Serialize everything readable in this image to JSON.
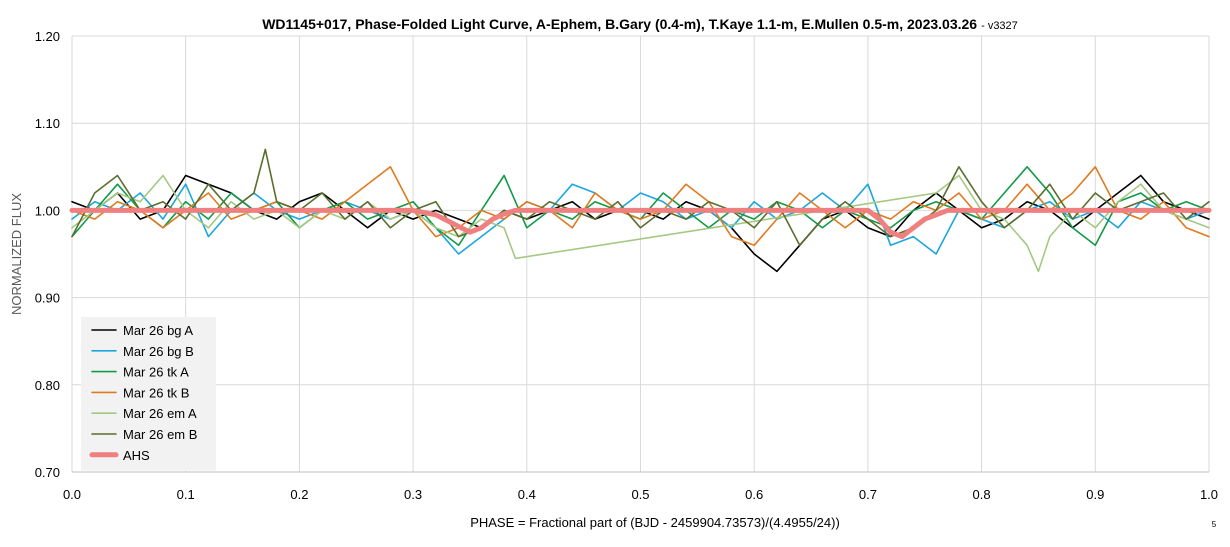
{
  "chart_data": {
    "type": "line",
    "title": "WD1145+017, Phase-Folded Light Curve, A-Ephem, B.Gary (0.4-m), T.Kaye 1.1-m, E.Mullen 0.5-m, 2023.03.26",
    "title_suffix": "- v3327",
    "xlabel": "PHASE = Fractional part of (BJD - 2459904.73573)/(4.4955/24))",
    "ylabel": "NORMALIZED FLUX",
    "xlim": [
      0.0,
      1.0
    ],
    "ylim": [
      0.7,
      1.2
    ],
    "x_ticks": [
      "0.0",
      "0.1",
      "0.2",
      "0.3",
      "0.4",
      "0.5",
      "0.6",
      "0.7",
      "0.8",
      "0.9",
      "1.0"
    ],
    "y_ticks": [
      "0.70",
      "0.80",
      "0.90",
      "1.00",
      "1.10",
      "1.20"
    ],
    "grid": true,
    "legend_position": "bottom-left",
    "page_number": "5",
    "series": [
      {
        "name": "Mar 26 bg A",
        "color": "#000000",
        "x": [
          0.0,
          0.02,
          0.04,
          0.06,
          0.08,
          0.1,
          0.12,
          0.14,
          0.16,
          0.18,
          0.2,
          0.22,
          0.24,
          0.26,
          0.28,
          0.3,
          0.32,
          0.34,
          0.36,
          0.38,
          0.4,
          0.42,
          0.44,
          0.46,
          0.48,
          0.5,
          0.52,
          0.54,
          0.56,
          0.58,
          0.6,
          0.62,
          0.64,
          0.66,
          0.68,
          0.7,
          0.72,
          0.74,
          0.76,
          0.78,
          0.8,
          0.82,
          0.84,
          0.86,
          0.88,
          0.9,
          0.92,
          0.94,
          0.96,
          0.98,
          1.0
        ],
        "y": [
          1.01,
          1.0,
          1.02,
          0.99,
          1.0,
          1.04,
          1.03,
          1.02,
          1.0,
          0.99,
          1.01,
          1.02,
          1.0,
          0.98,
          1.0,
          0.99,
          1.0,
          0.99,
          0.98,
          1.0,
          0.99,
          1.0,
          1.01,
          0.99,
          1.0,
          1.0,
          0.99,
          1.01,
          1.0,
          0.98,
          0.95,
          0.93,
          0.96,
          0.99,
          1.0,
          0.98,
          0.97,
          1.0,
          1.02,
          1.0,
          0.98,
          0.99,
          1.01,
          1.0,
          0.98,
          1.0,
          1.02,
          1.04,
          1.01,
          1.0,
          0.99
        ]
      },
      {
        "name": "Mar 26 bg B",
        "color": "#1ba7de",
        "x": [
          0.0,
          0.02,
          0.04,
          0.06,
          0.08,
          0.1,
          0.12,
          0.14,
          0.16,
          0.18,
          0.2,
          0.22,
          0.24,
          0.26,
          0.28,
          0.3,
          0.32,
          0.34,
          0.36,
          0.38,
          0.4,
          0.42,
          0.44,
          0.46,
          0.48,
          0.5,
          0.52,
          0.54,
          0.56,
          0.58,
          0.6,
          0.62,
          0.64,
          0.66,
          0.68,
          0.7,
          0.72,
          0.74,
          0.76,
          0.78,
          0.8,
          0.82,
          0.84,
          0.86,
          0.88,
          0.9,
          0.92,
          0.94,
          0.96,
          0.98,
          1.0
        ],
        "y": [
          0.99,
          1.01,
          1.0,
          1.02,
          0.99,
          1.03,
          0.97,
          1.0,
          1.02,
          1.0,
          0.99,
          1.0,
          1.01,
          1.0,
          0.99,
          1.0,
          0.98,
          0.95,
          0.97,
          0.99,
          1.01,
          1.0,
          1.03,
          1.02,
          1.0,
          1.02,
          1.01,
          0.99,
          1.0,
          0.98,
          1.01,
          0.99,
          1.0,
          1.02,
          1.0,
          1.03,
          0.96,
          0.97,
          0.95,
          1.0,
          0.99,
          0.98,
          1.0,
          1.01,
          0.99,
          1.0,
          0.98,
          1.01,
          1.0,
          0.99,
          1.0
        ]
      },
      {
        "name": "Mar 26 tk A",
        "color": "#129a48",
        "x": [
          0.0,
          0.02,
          0.04,
          0.06,
          0.08,
          0.1,
          0.12,
          0.14,
          0.16,
          0.18,
          0.2,
          0.22,
          0.24,
          0.26,
          0.28,
          0.3,
          0.32,
          0.34,
          0.36,
          0.38,
          0.4,
          0.42,
          0.44,
          0.46,
          0.48,
          0.5,
          0.52,
          0.54,
          0.56,
          0.58,
          0.6,
          0.62,
          0.64,
          0.66,
          0.68,
          0.7,
          0.72,
          0.74,
          0.76,
          0.78,
          0.8,
          0.82,
          0.84,
          0.86,
          0.88,
          0.9,
          0.92,
          0.94,
          0.96,
          0.98,
          1.0
        ],
        "y": [
          0.97,
          1.0,
          1.03,
          1.0,
          0.98,
          1.01,
          0.99,
          1.02,
          1.0,
          1.01,
          0.98,
          1.0,
          1.01,
          0.99,
          1.0,
          1.01,
          0.98,
          0.96,
          1.0,
          1.04,
          0.98,
          1.0,
          0.99,
          1.01,
          1.0,
          0.99,
          1.02,
          1.0,
          0.98,
          1.0,
          0.99,
          1.01,
          1.0,
          0.98,
          1.0,
          0.99,
          0.98,
          1.0,
          1.01,
          1.0,
          0.99,
          1.02,
          1.05,
          1.02,
          0.98,
          0.96,
          1.01,
          1.02,
          1.0,
          1.01,
          1.0
        ]
      },
      {
        "name": "Mar 26 tk B",
        "color": "#e07a1f",
        "x": [
          0.0,
          0.02,
          0.04,
          0.06,
          0.08,
          0.1,
          0.12,
          0.14,
          0.16,
          0.18,
          0.2,
          0.22,
          0.24,
          0.26,
          0.28,
          0.3,
          0.32,
          0.34,
          0.36,
          0.38,
          0.4,
          0.42,
          0.44,
          0.46,
          0.48,
          0.5,
          0.52,
          0.54,
          0.56,
          0.58,
          0.6,
          0.62,
          0.64,
          0.66,
          0.68,
          0.7,
          0.72,
          0.74,
          0.76,
          0.78,
          0.8,
          0.82,
          0.84,
          0.86,
          0.88,
          0.9,
          0.92,
          0.94,
          0.96,
          0.98,
          1.0
        ],
        "y": [
          1.0,
          0.99,
          1.01,
          1.0,
          0.98,
          1.0,
          1.02,
          0.99,
          1.0,
          1.01,
          1.0,
          0.99,
          1.01,
          1.03,
          1.05,
          1.0,
          0.97,
          0.98,
          1.0,
          0.99,
          1.01,
          1.0,
          0.98,
          1.02,
          1.0,
          0.99,
          1.0,
          1.03,
          1.01,
          0.97,
          0.96,
          0.99,
          1.02,
          1.0,
          0.98,
          1.0,
          0.99,
          1.01,
          1.0,
          1.02,
          0.99,
          1.0,
          1.03,
          1.0,
          1.02,
          1.05,
          1.0,
          0.99,
          1.01,
          0.98,
          0.97
        ]
      },
      {
        "name": "Mar 26 em A",
        "color": "#a5c882",
        "x": [
          0.0,
          0.02,
          0.04,
          0.06,
          0.08,
          0.1,
          0.12,
          0.14,
          0.16,
          0.18,
          0.2,
          0.22,
          0.24,
          0.26,
          0.28,
          0.3,
          0.32,
          0.34,
          0.36,
          0.38,
          0.39,
          0.76,
          0.78,
          0.8,
          0.82,
          0.84,
          0.85,
          0.86,
          0.88,
          0.9,
          0.92,
          0.94,
          0.96,
          0.98,
          1.0
        ],
        "y": [
          0.98,
          1.0,
          1.02,
          1.01,
          1.04,
          1.0,
          0.98,
          1.01,
          0.99,
          1.0,
          0.98,
          1.0,
          0.99,
          1.01,
          0.99,
          1.0,
          0.98,
          0.97,
          0.99,
          0.98,
          0.945,
          1.02,
          1.04,
          1.0,
          0.99,
          0.96,
          0.93,
          0.97,
          1.0,
          0.98,
          1.01,
          1.03,
          1.0,
          0.99,
          0.98
        ]
      },
      {
        "name": "Mar 26 em B",
        "color": "#5b6e2e",
        "x": [
          0.0,
          0.02,
          0.04,
          0.06,
          0.08,
          0.1,
          0.12,
          0.14,
          0.16,
          0.17,
          0.18,
          0.2,
          0.22,
          0.24,
          0.26,
          0.28,
          0.3,
          0.32,
          0.34,
          0.36,
          0.38,
          0.4,
          0.42,
          0.44,
          0.46,
          0.48,
          0.5,
          0.52,
          0.54,
          0.56,
          0.58,
          0.6,
          0.62,
          0.64,
          0.66,
          0.68,
          0.7,
          0.72,
          0.74,
          0.76,
          0.78,
          0.8,
          0.82,
          0.84,
          0.86,
          0.88,
          0.9,
          0.92,
          0.94,
          0.96,
          0.98,
          1.0
        ],
        "y": [
          0.97,
          1.02,
          1.04,
          1.0,
          1.01,
          0.99,
          1.03,
          1.0,
          1.02,
          1.07,
          1.01,
          1.0,
          1.02,
          0.99,
          1.01,
          0.98,
          1.0,
          1.01,
          0.97,
          0.98,
          1.0,
          0.99,
          1.01,
          1.0,
          0.99,
          1.01,
          0.98,
          1.0,
          0.99,
          1.01,
          1.0,
          0.98,
          1.01,
          0.96,
          0.99,
          1.01,
          0.99,
          0.97,
          0.98,
          1.0,
          1.05,
          1.01,
          0.98,
          1.0,
          1.03,
          0.99,
          1.02,
          1.0,
          1.01,
          1.02,
          0.99,
          1.01
        ]
      },
      {
        "name": "AHS",
        "color": "#f08080",
        "x": [
          0.0,
          0.3,
          0.32,
          0.335,
          0.35,
          0.36,
          0.37,
          0.38,
          0.39,
          0.4,
          0.7,
          0.71,
          0.72,
          0.73,
          0.74,
          0.75,
          0.76,
          0.77,
          1.0
        ],
        "y": [
          1.0,
          1.0,
          0.995,
          0.985,
          0.975,
          0.98,
          0.99,
          0.996,
          1.0,
          1.0,
          1.0,
          0.99,
          0.975,
          0.97,
          0.98,
          0.99,
          0.995,
          1.0,
          1.0
        ]
      }
    ]
  }
}
